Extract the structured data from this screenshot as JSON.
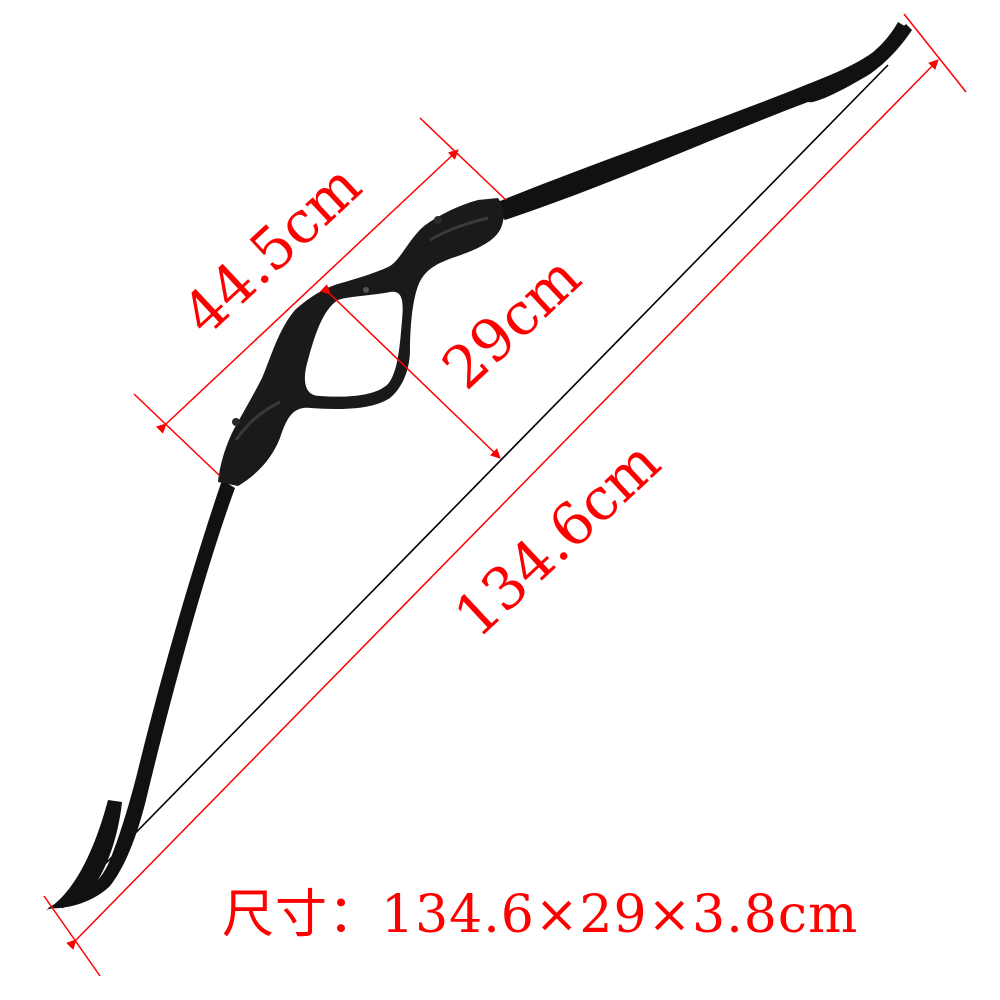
{
  "product": {
    "name": "recurve-bow",
    "color": "#111111",
    "string_color": "#000000"
  },
  "dimensions": {
    "line_color": "#ff0000",
    "text_color": "#ff0000",
    "riser_length": "44.5cm",
    "brace_height": "29cm",
    "total_length": "134.6cm"
  },
  "caption": {
    "text": "尺寸：134.6×29×3.8cm"
  }
}
